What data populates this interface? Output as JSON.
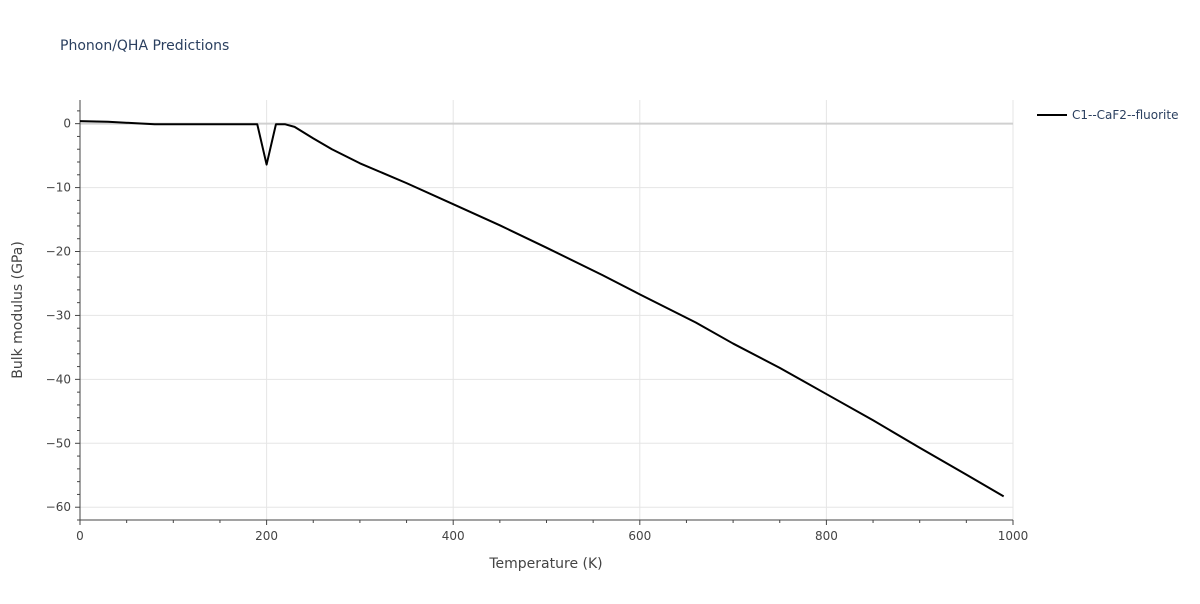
{
  "chart_data": {
    "type": "line",
    "title": "Phonon/QHA Predictions",
    "xlabel": "Temperature (K)",
    "ylabel": "Bulk modulus (GPa)",
    "xlim": [
      0,
      1000
    ],
    "ylim": [
      -62,
      3.7
    ],
    "x_ticks": [
      0,
      200,
      400,
      600,
      800,
      1000
    ],
    "x_tick_labels": [
      "0",
      "200",
      "400",
      "600",
      "800",
      "1000"
    ],
    "y_ticks": [
      0,
      -10,
      -20,
      -30,
      -40,
      -50,
      -60
    ],
    "y_tick_labels": [
      "0",
      "−10",
      "−20",
      "−30",
      "−40",
      "−50",
      "−60"
    ],
    "grid": true,
    "legend_position": "top-right",
    "colors": {
      "series": "#000000",
      "grid": "#e5e5e5",
      "zero_line": "#d0d0d0"
    },
    "series": [
      {
        "name": "C1--CaF2--fluorite",
        "x": [
          0,
          30,
          80,
          150,
          190,
          200,
          210,
          220,
          230,
          250,
          270,
          300,
          350,
          400,
          450,
          500,
          560,
          600,
          660,
          700,
          750,
          800,
          850,
          900,
          950,
          990
        ],
        "y": [
          0.4,
          0.3,
          -0.1,
          -0.1,
          -0.1,
          -6.4,
          -0.1,
          -0.1,
          -0.5,
          -2.3,
          -4.0,
          -6.2,
          -9.3,
          -12.6,
          -15.9,
          -19.4,
          -23.7,
          -26.7,
          -31.1,
          -34.4,
          -38.2,
          -42.3,
          -46.4,
          -50.7,
          -54.9,
          -58.3
        ]
      }
    ]
  }
}
